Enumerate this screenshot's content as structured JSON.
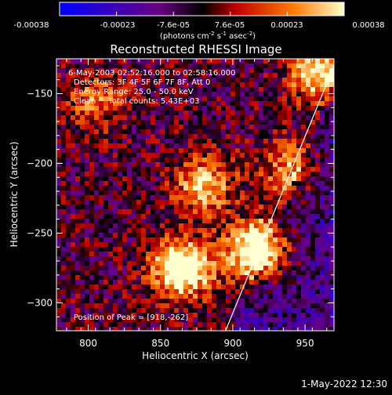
{
  "colorbar": {
    "ticks": [
      "-0.00038",
      "-0.00023",
      "-7.6e-05",
      "7.6e-05",
      "0.00023",
      "0.00038"
    ],
    "units_prefix": "(photons cm",
    "units_exp1": "-2",
    "units_mid": " s",
    "units_exp2": "-1",
    "units_mid2": " asec",
    "units_exp3": "-2",
    "units_suffix": ")",
    "colors": [
      "#0000ff",
      "#6a0080",
      "#000000",
      "#d40000",
      "#ff7a00",
      "#ffffd0"
    ]
  },
  "info": {
    "line1": "6-May-2003 02:52:16.000 to 02:58:16.000",
    "line2": "Detectors: 3F 4F 5F 6F 7F 8F, Att 0",
    "line3": "Energy Range: 25.0 - 50.0 keV",
    "line4": "Clean     Total counts: 5.43E+03"
  },
  "peak_label": "Position of Peak = [918,-262]",
  "footer_date": "1-May-2022 12:30",
  "chart_data": {
    "type": "heatmap",
    "title": "Reconstructed RHESSI Image",
    "xlabel": "Heliocentric X (arcsec)",
    "ylabel": "Heliocentric Y (arcsec)",
    "xlim": [
      778,
      970
    ],
    "ylim": [
      -320,
      -125
    ],
    "xticks": [
      800,
      850,
      900,
      950
    ],
    "yticks": [
      -300,
      -250,
      -200,
      -150
    ],
    "colorbar_range": [
      -0.00038,
      0.00038
    ],
    "peak": [
      918,
      -262
    ],
    "limb_line": {
      "x": [
        895,
        972
      ],
      "y": [
        -320,
        -125
      ]
    },
    "bright_regions": [
      {
        "x": 865,
        "y": -275,
        "level": 0.95
      },
      {
        "x": 918,
        "y": -262,
        "level": 1.0
      },
      {
        "x": 880,
        "y": -215,
        "level": 0.6
      },
      {
        "x": 940,
        "y": -205,
        "level": 0.5
      },
      {
        "x": 960,
        "y": -135,
        "level": 0.75
      },
      {
        "x": 805,
        "y": -155,
        "level": 0.4
      }
    ]
  }
}
